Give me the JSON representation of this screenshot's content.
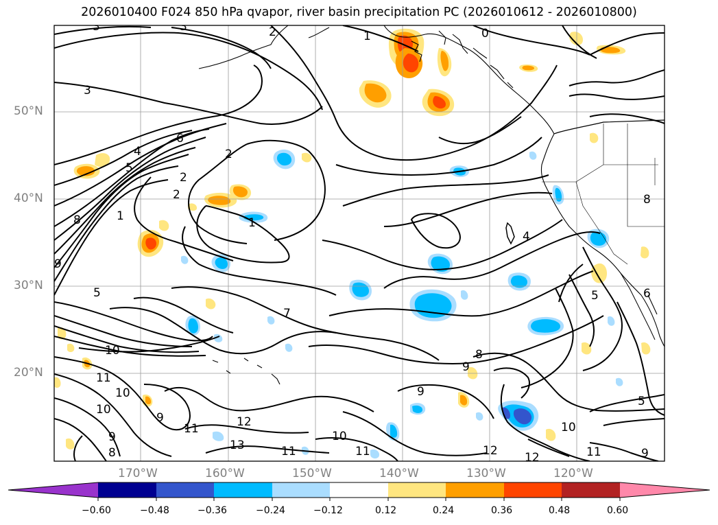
{
  "title": "2026010400 F024 850 hPa qvapor, river basin precipitation PC (2026010612 - 2026010800)",
  "lat_labels": [
    "50°N",
    "40°N",
    "30°N",
    "20°N"
  ],
  "lon_labels": [
    "170°W",
    "160°W",
    "150°W",
    "140°W",
    "130°W",
    "120°W"
  ],
  "colorbar": {
    "ticks": [
      "−0.60",
      "−0.48",
      "−0.36",
      "−0.24",
      "−0.12",
      "0.12",
      "0.24",
      "0.36",
      "0.48",
      "0.60"
    ],
    "colors": [
      "#9933cc",
      "#000090",
      "#3355cc",
      "#00bbff",
      "#aaddff",
      "#ffffff",
      "#ffe680",
      "#ff9f00",
      "#ff4500",
      "#b22222",
      "#ff88aa"
    ]
  },
  "contour_labels": [
    "3",
    "3",
    "2",
    "1",
    "0",
    "3",
    "4",
    "6",
    "5",
    "2",
    "2",
    "2",
    "8",
    "1",
    "1",
    "9",
    "4",
    "7",
    "5",
    "10",
    "11",
    "10",
    "10",
    "9",
    "11",
    "12",
    "13",
    "11",
    "11",
    "10",
    "9",
    "8",
    "9",
    "9",
    "8",
    "10",
    "12",
    "12",
    "11",
    "9",
    "5",
    "5",
    "6",
    "8"
  ],
  "precip_colors": {
    "pos_light": "#ffe680",
    "pos_mid": "#ff9f00",
    "pos_high": "#ff4500",
    "neg_light": "#aaddff",
    "neg_mid": "#00bbff",
    "neg_high": "#3355cc"
  }
}
